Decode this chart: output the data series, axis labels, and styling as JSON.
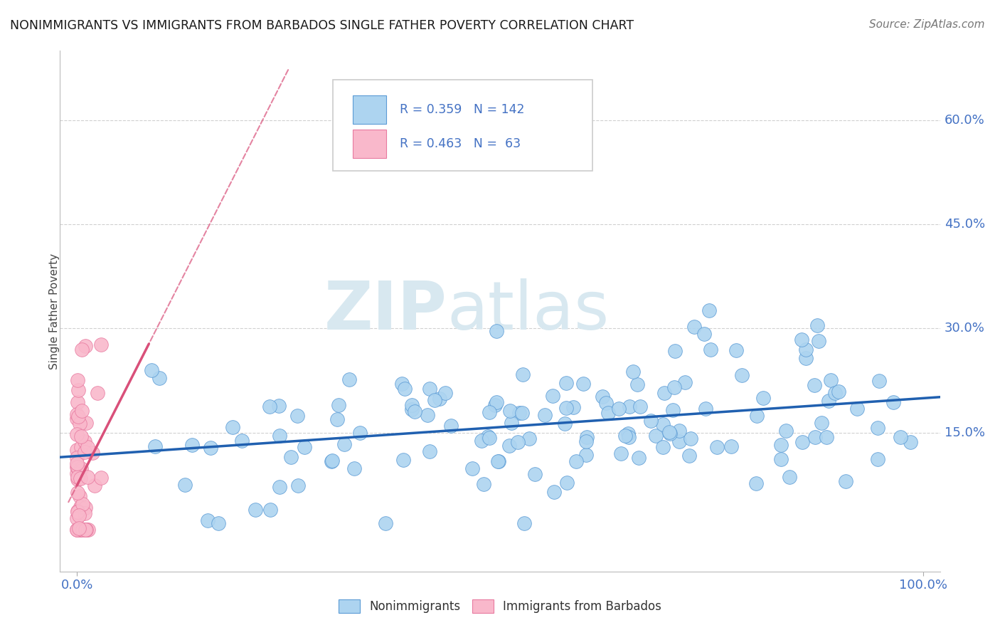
{
  "title": "NONIMMIGRANTS VS IMMIGRANTS FROM BARBADOS SINGLE FATHER POVERTY CORRELATION CHART",
  "source": "Source: ZipAtlas.com",
  "ylabel": "Single Father Poverty",
  "xlabel": "",
  "watermark_ZIP": "ZIP",
  "watermark_atlas": "atlas",
  "blue_R": 0.359,
  "blue_N": 142,
  "pink_R": 0.463,
  "pink_N": 63,
  "blue_color": "#add4f0",
  "pink_color": "#f9b8cb",
  "blue_edge_color": "#5b9bd5",
  "pink_edge_color": "#e87aa0",
  "blue_line_color": "#2060b0",
  "pink_line_color": "#d9507a",
  "axis_tick_color": "#4472c4",
  "title_color": "#1a1a1a",
  "legend_text_color": "#4472c4",
  "grid_color": "#d0d0d0",
  "ytick_labels": [
    "15.0%",
    "30.0%",
    "45.0%",
    "60.0%"
  ],
  "ytick_values": [
    0.15,
    0.3,
    0.45,
    0.6
  ],
  "xlim": [
    -0.02,
    1.02
  ],
  "ylim": [
    -0.05,
    0.7
  ],
  "figsize": [
    14.06,
    8.92
  ],
  "dpi": 100
}
